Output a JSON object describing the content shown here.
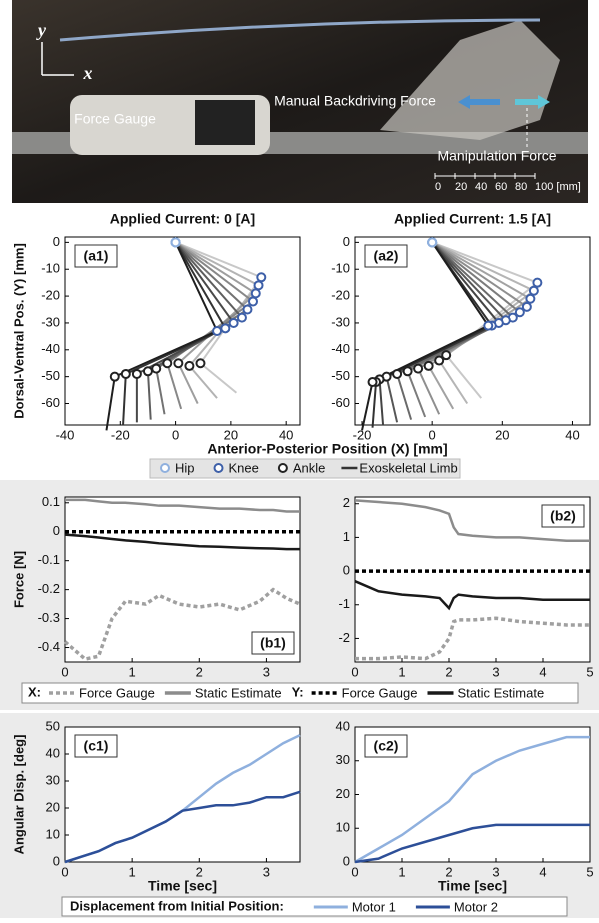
{
  "photo": {
    "axis_y": "y",
    "axis_x": "x",
    "force_gauge": "Force Gauge",
    "backdriving": "Manual Backdriving Force",
    "manipulation": "Manipulation Force",
    "scale_labels": [
      "0",
      "20",
      "40",
      "60",
      "80",
      "100 [mm]"
    ]
  },
  "chart_data": [
    {
      "type": "stick",
      "title": "Applied Current: 0 [A]",
      "panel_label": "(a1)",
      "ylabel": "Dorsal-Ventral Pos. (Y) [mm]",
      "xlabel": "Anterior-Posterior Position (X) [mm]",
      "xlim": [
        -40,
        45
      ],
      "ylim": [
        -68,
        2
      ],
      "xticks": [
        -40,
        -20,
        0,
        20,
        40
      ],
      "yticks": [
        0,
        -10,
        -20,
        -30,
        -40,
        -50,
        -60
      ],
      "series": [
        {
          "name": "Hip",
          "color": "#8fb0de",
          "x": [
            0,
            0,
            0,
            0,
            0,
            0,
            0,
            0,
            0
          ],
          "y": [
            0,
            0,
            0,
            0,
            0,
            0,
            0,
            0,
            0
          ]
        },
        {
          "name": "Knee",
          "color": "#3d5fa8",
          "x": [
            31,
            30,
            29,
            28,
            26,
            24,
            21,
            18,
            15
          ],
          "y": [
            -13,
            -16,
            -19,
            -22,
            -25,
            -28,
            -30,
            -32,
            -33
          ]
        },
        {
          "name": "Ankle",
          "color": "#222222",
          "x": [
            9,
            5,
            1,
            -3,
            -7,
            -10,
            -14,
            -18,
            -22
          ],
          "y": [
            -45,
            -46,
            -45,
            -45,
            -47,
            -48,
            -49,
            -49,
            -50
          ]
        },
        {
          "name": "Exoskeletal Limb",
          "color": "#333333",
          "x": [
            22,
            15,
            8,
            2,
            -4,
            -9,
            -14,
            -19,
            -25
          ],
          "y": [
            -56,
            -58,
            -60,
            -62,
            -64,
            -66,
            -67,
            -68,
            -70
          ]
        }
      ]
    },
    {
      "type": "stick",
      "title": "Applied Current: 1.5 [A]",
      "panel_label": "(a2)",
      "xlim": [
        -22,
        45
      ],
      "ylim": [
        -68,
        2
      ],
      "xticks": [
        -20,
        0,
        20,
        40
      ],
      "yticks": [
        0,
        -10,
        -20,
        -30,
        -40,
        -50,
        -60
      ],
      "series": [
        {
          "name": "Hip",
          "color": "#8fb0de",
          "x": [
            0,
            0,
            0,
            0,
            0,
            0,
            0,
            0,
            0,
            0
          ],
          "y": [
            0,
            0,
            0,
            0,
            0,
            0,
            0,
            0,
            0,
            0
          ]
        },
        {
          "name": "Knee",
          "color": "#3d5fa8",
          "x": [
            30,
            29,
            28,
            27,
            25,
            23,
            21,
            19,
            17,
            16
          ],
          "y": [
            -15,
            -18,
            -21,
            -24,
            -26,
            -28,
            -29,
            -30,
            -31,
            -31
          ]
        },
        {
          "name": "Ankle",
          "color": "#222222",
          "x": [
            4,
            2,
            -1,
            -4,
            -7,
            -10,
            -13,
            -15,
            -16,
            -17
          ],
          "y": [
            -42,
            -44,
            -46,
            -47,
            -48,
            -49,
            -50,
            -51,
            -52,
            -52
          ]
        },
        {
          "name": "Exoskeletal Limb",
          "color": "#333333",
          "x": [
            14,
            10,
            6,
            2,
            -2,
            -6,
            -10,
            -14,
            -17,
            -20
          ],
          "y": [
            -58,
            -60,
            -62,
            -64,
            -65,
            -66,
            -67,
            -68,
            -69,
            -70
          ]
        }
      ]
    },
    {
      "type": "line",
      "panel_label": "(b1)",
      "ylabel": "Force [N]",
      "legend_groups": [
        "X:",
        "Y:"
      ],
      "xlim": [
        0,
        3.5
      ],
      "ylim": [
        -0.45,
        0.12
      ],
      "xticks": [
        0,
        1,
        2,
        3
      ],
      "yticks": [
        0.1,
        0,
        -0.1,
        -0.2,
        -0.3,
        -0.4
      ],
      "x": [
        0,
        0.3,
        0.5,
        0.7,
        0.9,
        1.2,
        1.4,
        1.7,
        2.0,
        2.3,
        2.6,
        2.9,
        3.1,
        3.3,
        3.5
      ],
      "series": [
        {
          "name": "Force Gauge",
          "color": "#a0a0a0",
          "dash": true,
          "values": [
            -0.38,
            -0.44,
            -0.43,
            -0.3,
            -0.24,
            -0.25,
            -0.22,
            -0.25,
            -0.26,
            -0.25,
            -0.27,
            -0.24,
            -0.2,
            -0.23,
            -0.25
          ]
        },
        {
          "name": "Static Estimate",
          "color": "#8c8c8c",
          "dash": false,
          "values": [
            0.11,
            0.11,
            0.105,
            0.1,
            0.1,
            0.095,
            0.09,
            0.09,
            0.085,
            0.08,
            0.08,
            0.075,
            0.075,
            0.07,
            0.07
          ]
        },
        {
          "name": "Force Gauge",
          "color": "#000000",
          "dash": true,
          "values": [
            0,
            0,
            0,
            0,
            0,
            0,
            0,
            0,
            0,
            0,
            0,
            0,
            0,
            0,
            0
          ]
        },
        {
          "name": "Static Estimate",
          "color": "#1a1a1a",
          "dash": false,
          "values": [
            -0.01,
            -0.015,
            -0.02,
            -0.025,
            -0.03,
            -0.035,
            -0.04,
            -0.045,
            -0.05,
            -0.052,
            -0.055,
            -0.057,
            -0.058,
            -0.06,
            -0.06
          ]
        }
      ]
    },
    {
      "type": "line",
      "panel_label": "(b2)",
      "xlim": [
        0,
        5
      ],
      "ylim": [
        -2.7,
        2.2
      ],
      "xticks": [
        0,
        1,
        2,
        3,
        4,
        5
      ],
      "yticks": [
        2,
        1,
        0,
        -1,
        -2
      ],
      "x": [
        0,
        0.5,
        1,
        1.5,
        1.8,
        2,
        2.1,
        2.2,
        2.5,
        3,
        3.5,
        4,
        4.5,
        5
      ],
      "series": [
        {
          "name": "Force Gauge",
          "color": "#a0a0a0",
          "dash": true,
          "values": [
            -2.6,
            -2.6,
            -2.55,
            -2.6,
            -2.4,
            -2.0,
            -1.5,
            -1.45,
            -1.45,
            -1.4,
            -1.5,
            -1.55,
            -1.6,
            -1.6
          ]
        },
        {
          "name": "Static Estimate",
          "color": "#8c8c8c",
          "dash": false,
          "values": [
            2.1,
            2.05,
            2.0,
            1.9,
            1.8,
            1.7,
            1.3,
            1.1,
            1.05,
            1.0,
            1.0,
            0.95,
            0.9,
            0.9
          ]
        },
        {
          "name": "Force Gauge",
          "color": "#000000",
          "dash": true,
          "values": [
            0,
            0,
            0,
            0,
            0,
            0,
            0,
            0,
            0,
            0,
            0,
            0,
            0,
            0
          ]
        },
        {
          "name": "Static Estimate",
          "color": "#1a1a1a",
          "dash": false,
          "values": [
            -0.3,
            -0.6,
            -0.7,
            -0.75,
            -0.8,
            -1.1,
            -0.8,
            -0.7,
            -0.75,
            -0.8,
            -0.8,
            -0.85,
            -0.85,
            -0.85
          ]
        }
      ]
    },
    {
      "type": "line",
      "panel_label": "(c1)",
      "ylabel": "Angular Disp. [deg]",
      "xlabel": "Time [sec]",
      "legend_title": "Displacement from Initial Position:",
      "xlim": [
        0,
        3.5
      ],
      "ylim": [
        0,
        50
      ],
      "xticks": [
        0,
        1,
        2,
        3
      ],
      "yticks": [
        0,
        10,
        20,
        30,
        40,
        50
      ],
      "x": [
        0,
        0.25,
        0.5,
        0.75,
        1,
        1.25,
        1.5,
        1.75,
        2,
        2.25,
        2.5,
        2.75,
        3,
        3.25,
        3.5
      ],
      "series": [
        {
          "name": "Motor 1",
          "color": "#8fb0de",
          "dash": false,
          "values": [
            0,
            2,
            4,
            7,
            9,
            12,
            15,
            19,
            24,
            29,
            33,
            36,
            40,
            44,
            47
          ]
        },
        {
          "name": "Motor 2",
          "color": "#2d4f98",
          "dash": false,
          "values": [
            0,
            2,
            4,
            7,
            9,
            12,
            15,
            19,
            20,
            21,
            21,
            22,
            24,
            24,
            26
          ]
        }
      ]
    },
    {
      "type": "line",
      "panel_label": "(c2)",
      "xlabel": "Time [sec]",
      "xlim": [
        0,
        5
      ],
      "ylim": [
        0,
        40
      ],
      "xticks": [
        0,
        1,
        2,
        3,
        4,
        5
      ],
      "yticks": [
        0,
        10,
        20,
        30,
        40
      ],
      "x": [
        0,
        0.5,
        1,
        1.5,
        2,
        2.5,
        3,
        3.5,
        4,
        4.5,
        5
      ],
      "series": [
        {
          "name": "Motor 1",
          "color": "#8fb0de",
          "dash": false,
          "values": [
            0,
            4,
            8,
            13,
            18,
            26,
            30,
            33,
            35,
            37,
            37
          ]
        },
        {
          "name": "Motor 2",
          "color": "#2d4f98",
          "dash": false,
          "values": [
            0,
            1,
            4,
            6,
            8,
            10,
            11,
            11,
            11,
            11,
            11
          ]
        }
      ]
    }
  ]
}
